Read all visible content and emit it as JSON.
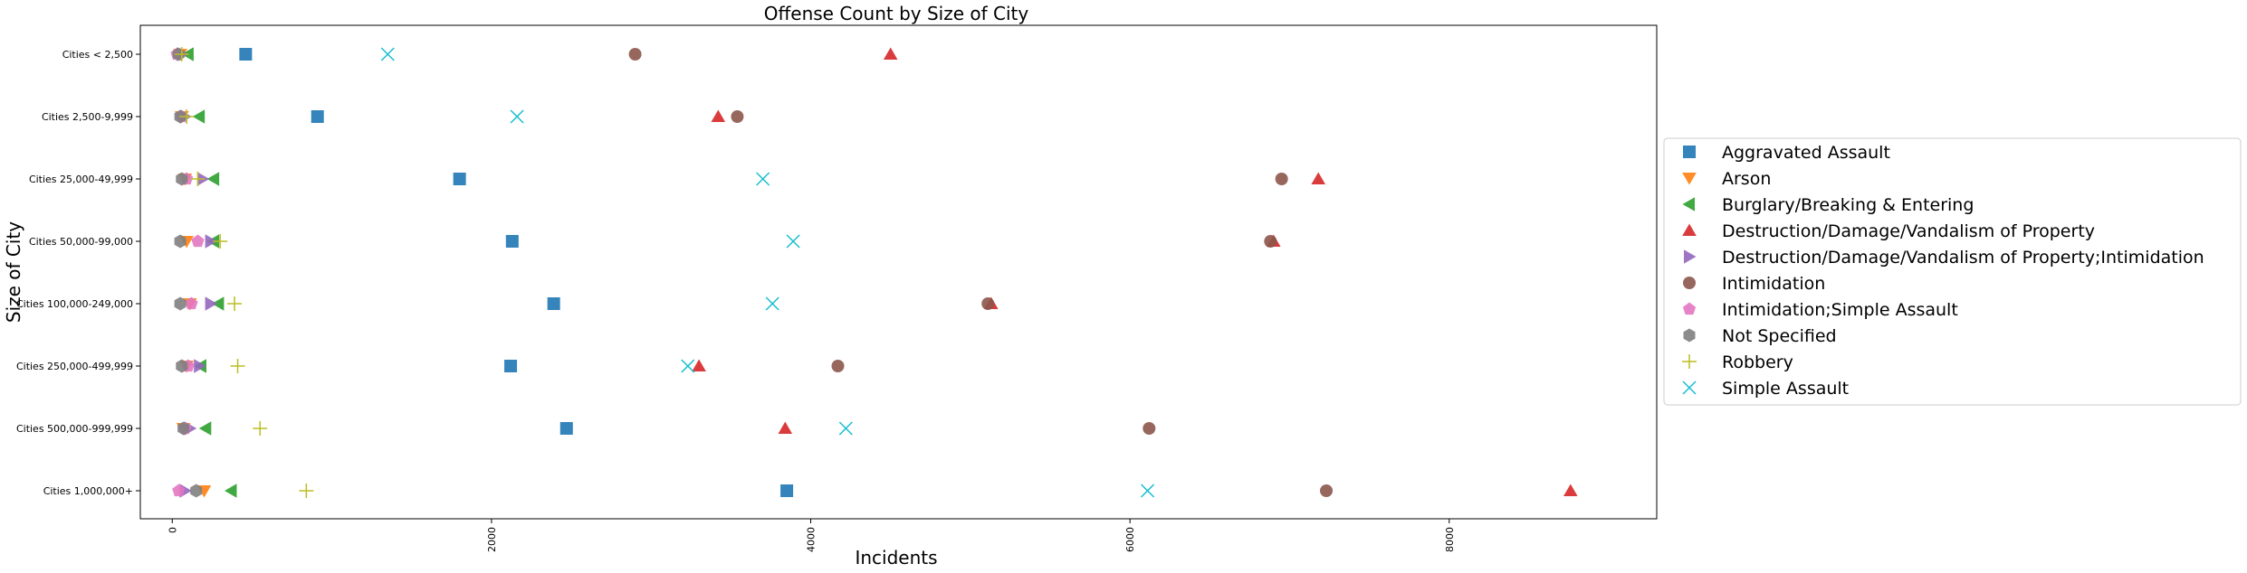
{
  "chart_data": {
    "type": "scatter",
    "title": "Offense Count by Size of City",
    "xlabel": "Incidents",
    "ylabel": "Size of City",
    "xlim": [
      -200,
      9300
    ],
    "xticks": [
      0,
      2000,
      4000,
      6000,
      8000
    ],
    "xtick_labels": [
      "0",
      "2000",
      "4000",
      "6000",
      "8000"
    ],
    "categories": [
      "Cities < 2,500",
      "Cities 2,500-9,999",
      "Cities 25,000-49,999",
      "Cities 50,000-99,000",
      "Cities 100,000-249,000",
      "Cities 250,000-499,999",
      "Cities 500,000-999,999",
      "Cities 1,000,000+"
    ],
    "grid": false,
    "legend_position": "right, outside plot",
    "series": [
      {
        "name": "Aggravated Assault",
        "marker": "square",
        "color": "#1f77b4",
        "values": [
          460,
          910,
          1800,
          2130,
          2390,
          2120,
          2470,
          3850
        ]
      },
      {
        "name": "Arson",
        "marker": "triangle-down",
        "color": "#ff7f0e",
        "values": [
          50,
          60,
          80,
          90,
          110,
          90,
          70,
          200
        ]
      },
      {
        "name": "Burglary/Breaking & Entering",
        "marker": "triangle-left",
        "color": "#2ca02c",
        "values": [
          100,
          170,
          260,
          260,
          290,
          180,
          210,
          370
        ]
      },
      {
        "name": "Destruction/Damage/Vandalism of Property",
        "marker": "triangle-up",
        "color": "#d62728",
        "values": [
          4500,
          3420,
          7180,
          6900,
          5130,
          3300,
          3840,
          8760
        ]
      },
      {
        "name": "Destruction/Damage/Vandalism of Property;Intimidation",
        "marker": "triangle-right",
        "color": "#9467bd",
        "values": [
          60,
          80,
          190,
          240,
          240,
          170,
          110,
          80
        ]
      },
      {
        "name": "Intimidation",
        "marker": "circle",
        "color": "#8c564b",
        "values": [
          2900,
          3540,
          6950,
          6880,
          5110,
          4170,
          6120,
          7230
        ]
      },
      {
        "name": "Intimidation;Simple Assault",
        "marker": "pentagon",
        "color": "#e377c2",
        "values": [
          30,
          60,
          90,
          160,
          120,
          100,
          80,
          40
        ]
      },
      {
        "name": "Not Specified",
        "marker": "hexagon",
        "color": "#7f7f7f",
        "values": [
          40,
          50,
          60,
          50,
          50,
          60,
          70,
          150
        ]
      },
      {
        "name": "Robbery",
        "marker": "plus",
        "color": "#bcbd22",
        "values": [
          60,
          90,
          160,
          300,
          390,
          410,
          550,
          840
        ]
      },
      {
        "name": "Simple Assault",
        "marker": "x",
        "color": "#17becf",
        "values": [
          1350,
          2160,
          3700,
          3890,
          3760,
          3230,
          4220,
          6110
        ]
      }
    ]
  }
}
